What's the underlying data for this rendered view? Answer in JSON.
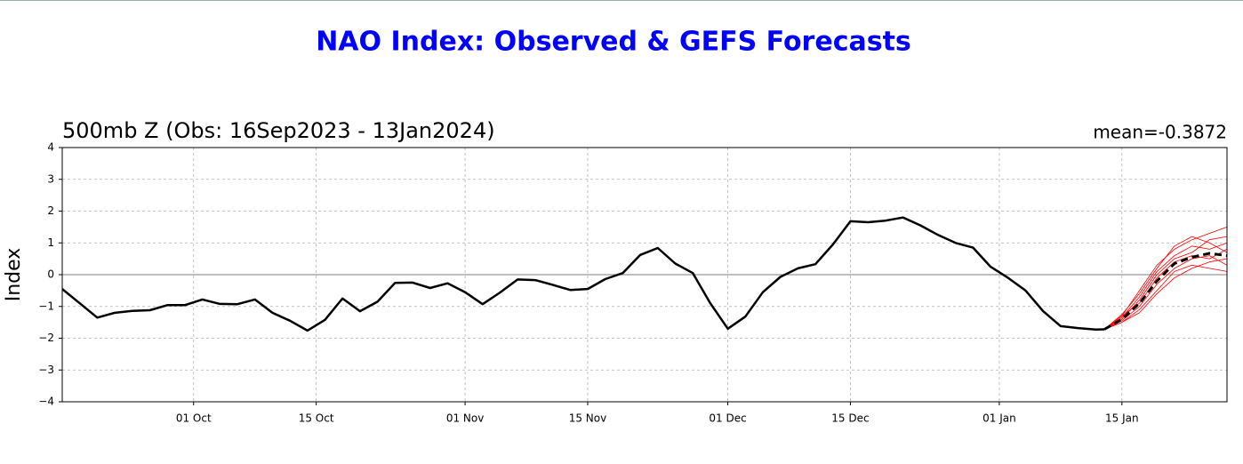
{
  "chart_data": {
    "type": "line",
    "title": "NAO Index: Observed & GEFS Forecasts",
    "subtitle": "500mb Z (Obs: 16Sep2023 - 13Jan2024)",
    "annotation": "mean=-0.3872",
    "y_label": "Index",
    "xlim": [
      "2023-09-16",
      "2024-01-27"
    ],
    "xticks": [
      {
        "value": "2023-10-01",
        "label": "01 Oct"
      },
      {
        "value": "2023-10-15",
        "label": "15 Oct"
      },
      {
        "value": "2023-11-01",
        "label": "01 Nov"
      },
      {
        "value": "2023-11-15",
        "label": "15 Nov"
      },
      {
        "value": "2023-12-01",
        "label": "01 Dec"
      },
      {
        "value": "2023-12-15",
        "label": "15 Dec"
      },
      {
        "value": "2024-01-01",
        "label": "01 Jan"
      },
      {
        "value": "2024-01-15",
        "label": "15 Jan"
      }
    ],
    "ylim": [
      -4,
      4
    ],
    "yticks": [
      {
        "value": -4,
        "label": "−4"
      },
      {
        "value": -3,
        "label": "−3"
      },
      {
        "value": -2,
        "label": "−2"
      },
      {
        "value": -1,
        "label": "−1"
      },
      0,
      1,
      2,
      3,
      4
    ],
    "grid": true,
    "series": [
      {
        "color": "#ff0000",
        "style": "thin",
        "x": [
          "2024-01-13",
          "2024-01-15",
          "2024-01-17",
          "2024-01-19",
          "2024-01-21",
          "2024-01-23",
          "2024-01-25",
          "2024-01-27"
        ],
        "values": [
          -1.72,
          -1.3,
          -0.5,
          0.3,
          0.8,
          1.1,
          1.3,
          1.5
        ]
      },
      {
        "color": "#ff0000",
        "style": "thin",
        "x": [
          "2024-01-13",
          "2024-01-15",
          "2024-01-17",
          "2024-01-19",
          "2024-01-21",
          "2024-01-23",
          "2024-01-25",
          "2024-01-27"
        ],
        "values": [
          -1.72,
          -1.5,
          -1.1,
          -0.5,
          0.1,
          0.3,
          0.2,
          0.1
        ]
      },
      {
        "color": "#ff0000",
        "style": "thin",
        "x": [
          "2024-01-13",
          "2024-01-15",
          "2024-01-17",
          "2024-01-19",
          "2024-01-21",
          "2024-01-23",
          "2024-01-25",
          "2024-01-27"
        ],
        "values": [
          -1.72,
          -1.35,
          -0.7,
          0.1,
          0.6,
          0.9,
          0.8,
          1.0
        ]
      },
      {
        "color": "#ff0000",
        "style": "thin",
        "x": [
          "2024-01-13",
          "2024-01-15",
          "2024-01-17",
          "2024-01-19",
          "2024-01-21",
          "2024-01-23",
          "2024-01-25",
          "2024-01-27"
        ],
        "values": [
          -1.72,
          -1.45,
          -1.0,
          -0.3,
          0.2,
          0.5,
          0.6,
          0.3
        ]
      },
      {
        "color": "#ff0000",
        "style": "thin",
        "x": [
          "2024-01-13",
          "2024-01-15",
          "2024-01-17",
          "2024-01-19",
          "2024-01-21",
          "2024-01-23",
          "2024-01-25",
          "2024-01-27"
        ],
        "values": [
          -1.72,
          -1.25,
          -0.6,
          0.2,
          0.9,
          1.2,
          1.0,
          0.7
        ]
      },
      {
        "color": "#ff0000",
        "style": "thin",
        "x": [
          "2024-01-13",
          "2024-01-15",
          "2024-01-17",
          "2024-01-19",
          "2024-01-21",
          "2024-01-23",
          "2024-01-25",
          "2024-01-27"
        ],
        "values": [
          -1.72,
          -1.5,
          -1.2,
          -0.6,
          -0.1,
          0.2,
          0.4,
          0.5
        ]
      },
      {
        "color": "#ff0000",
        "style": "thin",
        "x": [
          "2024-01-13",
          "2024-01-15",
          "2024-01-17",
          "2024-01-19",
          "2024-01-21",
          "2024-01-23",
          "2024-01-25",
          "2024-01-27"
        ],
        "values": [
          -1.72,
          -1.4,
          -0.8,
          0.0,
          0.5,
          0.7,
          1.1,
          1.2
        ]
      },
      {
        "color": "#ff0000",
        "style": "thin",
        "x": [
          "2024-01-13",
          "2024-01-15",
          "2024-01-17",
          "2024-01-19",
          "2024-01-21",
          "2024-01-23",
          "2024-01-25",
          "2024-01-27"
        ],
        "values": [
          -1.72,
          -1.3,
          -0.9,
          -0.1,
          0.4,
          0.6,
          0.5,
          0.8
        ]
      },
      {
        "color": "#000000",
        "style": "solid",
        "x": [
          "2023-09-16",
          "2023-09-18",
          "2023-09-20",
          "2023-09-22",
          "2023-09-24",
          "2023-09-26",
          "2023-09-28",
          "2023-09-30",
          "2023-10-02",
          "2023-10-04",
          "2023-10-06",
          "2023-10-08",
          "2023-10-10",
          "2023-10-12",
          "2023-10-14",
          "2023-10-16",
          "2023-10-18",
          "2023-10-20",
          "2023-10-22",
          "2023-10-24",
          "2023-10-26",
          "2023-10-28",
          "2023-10-30",
          "2023-11-01",
          "2023-11-03",
          "2023-11-05",
          "2023-11-07",
          "2023-11-09",
          "2023-11-11",
          "2023-11-13",
          "2023-11-15",
          "2023-11-17",
          "2023-11-19",
          "2023-11-21",
          "2023-11-23",
          "2023-11-25",
          "2023-11-27",
          "2023-11-29",
          "2023-12-01",
          "2023-12-03",
          "2023-12-05",
          "2023-12-07",
          "2023-12-09",
          "2023-12-11",
          "2023-12-13",
          "2023-12-15",
          "2023-12-17",
          "2023-12-19",
          "2023-12-21",
          "2023-12-23",
          "2023-12-25",
          "2023-12-27",
          "2023-12-29",
          "2023-12-31",
          "2024-01-02",
          "2024-01-04",
          "2024-01-06",
          "2024-01-08",
          "2024-01-10",
          "2024-01-12",
          "2024-01-13"
        ],
        "values": [
          -0.45,
          -0.9,
          -1.35,
          -1.2,
          -1.14,
          -1.12,
          -0.96,
          -0.96,
          -0.78,
          -0.92,
          -0.93,
          -0.78,
          -1.2,
          -1.45,
          -1.76,
          -1.42,
          -0.75,
          -1.15,
          -0.85,
          -0.26,
          -0.25,
          -0.42,
          -0.27,
          -0.55,
          -0.93,
          -0.56,
          -0.15,
          -0.17,
          -0.32,
          -0.48,
          -0.45,
          -0.14,
          0.05,
          0.62,
          0.84,
          0.35,
          0.05,
          -0.9,
          -1.7,
          -1.32,
          -0.55,
          -0.07,
          0.2,
          0.33,
          0.95,
          1.68,
          1.65,
          1.7,
          1.8,
          1.55,
          1.25,
          1.0,
          0.85,
          0.25,
          -0.1,
          -0.5,
          -1.15,
          -1.62,
          -1.68,
          -1.73,
          -1.72
        ]
      },
      {
        "color": "#000000",
        "style": "dashed",
        "x": [
          "2024-01-13",
          "2024-01-15",
          "2024-01-17",
          "2024-01-19",
          "2024-01-21",
          "2024-01-23",
          "2024-01-25",
          "2024-01-27"
        ],
        "values": [
          -1.72,
          -1.4,
          -0.9,
          -0.2,
          0.35,
          0.55,
          0.67,
          0.6
        ]
      }
    ]
  }
}
